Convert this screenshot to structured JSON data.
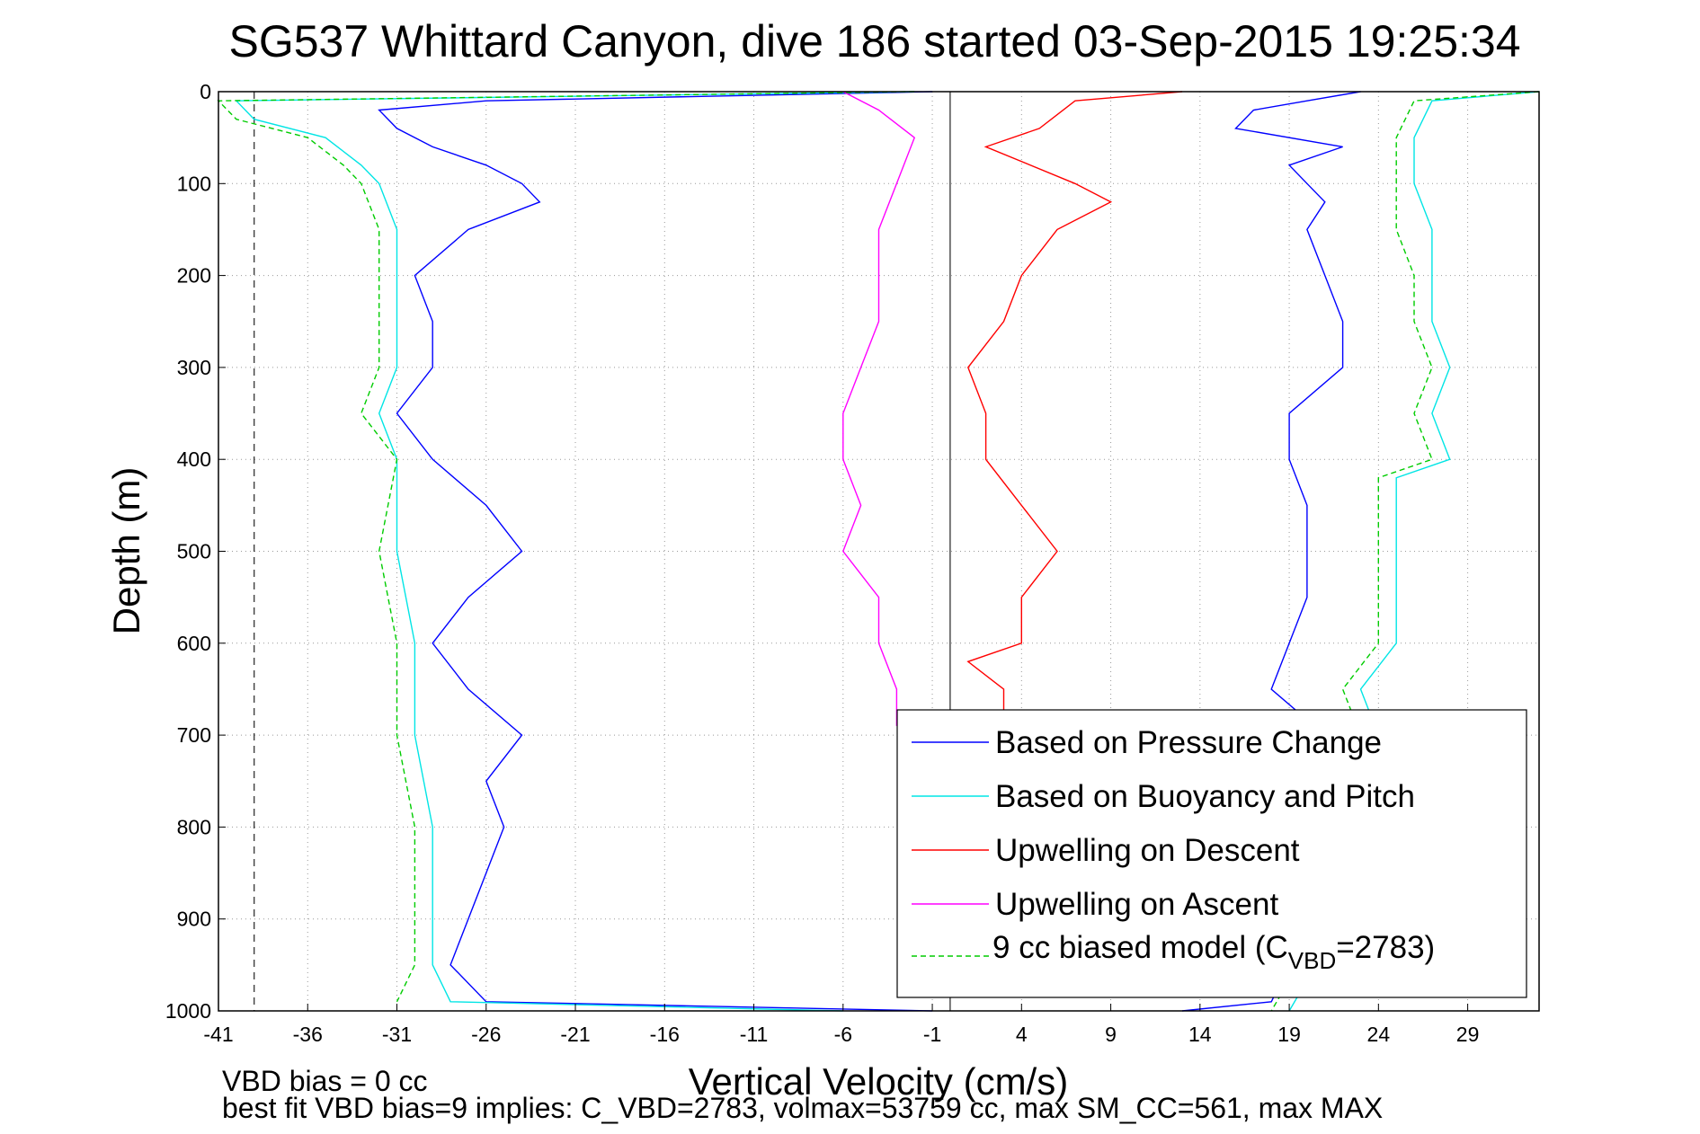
{
  "chart_data": {
    "type": "line",
    "title": "SG537 Whittard Canyon, dive 186 started 03-Sep-2015 19:25:34",
    "xlabel": "Vertical Velocity (cm/s)",
    "ylabel": "Depth (m)",
    "xlim": [
      -41,
      33
    ],
    "ylim": [
      0,
      1000
    ],
    "y_reversed": true,
    "grid": true,
    "x_ticks": [
      "-41",
      "-36",
      "-31",
      "-26",
      "-21",
      "-16",
      "-11",
      "-6",
      "-1",
      "4",
      "9",
      "14",
      "19",
      "24",
      "29"
    ],
    "y_ticks": [
      "0",
      "100",
      "200",
      "300",
      "400",
      "500",
      "600",
      "700",
      "800",
      "900",
      "1000"
    ],
    "legend_placement": "bottom-right",
    "reference_lines": [
      {
        "x": -39,
        "style": "dashed"
      },
      {
        "x": 0,
        "style": "solid"
      }
    ],
    "colors": {
      "pressure": "#0000ff",
      "buoyancy": "#00e5e5",
      "desc": "#ff0000",
      "asc": "#ff00ff",
      "model": "#00cc00"
    },
    "series": [
      {
        "name": "Based on Pressure Change",
        "key": "pressure",
        "style": "solid",
        "depth": [
          0,
          10,
          20,
          40,
          60,
          80,
          100,
          120,
          150,
          200,
          250,
          300,
          350,
          400,
          450,
          500,
          550,
          600,
          650,
          700,
          750,
          800,
          850,
          900,
          950,
          990,
          1000
        ],
        "values": [
          -1,
          -26,
          -32,
          -31,
          -29,
          -26,
          -24,
          -23,
          -27,
          -30,
          -29,
          -29,
          -31,
          -29,
          -26,
          -24,
          -27,
          -29,
          -27,
          -24,
          -26,
          -25,
          -26,
          -27,
          -28,
          -26,
          -1
        ]
      },
      {
        "name": "Based on Pressure Change",
        "key": "pressure",
        "style": "solid",
        "depth": [
          0,
          10,
          20,
          40,
          60,
          80,
          100,
          120,
          150,
          200,
          250,
          300,
          350,
          400,
          450,
          500,
          550,
          600,
          650,
          700,
          750,
          800,
          850,
          900,
          950,
          990,
          1000
        ],
        "values": [
          23,
          20,
          17,
          16,
          22,
          19,
          20,
          21,
          20,
          21,
          22,
          22,
          19,
          19,
          20,
          20,
          20,
          19,
          18,
          21,
          21,
          21,
          21,
          20,
          19,
          18,
          13
        ]
      },
      {
        "name": "Based on Buoyancy and Pitch",
        "key": "buoyancy",
        "style": "solid",
        "depth": [
          0,
          10,
          30,
          50,
          80,
          100,
          150,
          200,
          250,
          300,
          350,
          400,
          500,
          600,
          700,
          800,
          900,
          950,
          990,
          1000
        ],
        "values": [
          -2,
          -40,
          -39,
          -35,
          -33,
          -32,
          -31,
          -31,
          -31,
          -31,
          -32,
          -31,
          -31,
          -30,
          -30,
          -29,
          -29,
          -29,
          -28,
          -6
        ]
      },
      {
        "name": "Based on Buoyancy and Pitch",
        "key": "buoyancy",
        "style": "solid",
        "depth": [
          0,
          10,
          50,
          100,
          150,
          200,
          250,
          300,
          350,
          400,
          420,
          500,
          550,
          600,
          650,
          700,
          800,
          900,
          1000
        ],
        "values": [
          33,
          27,
          26,
          26,
          27,
          27,
          27,
          28,
          27,
          28,
          25,
          25,
          25,
          25,
          23,
          24,
          23,
          22,
          19
        ]
      },
      {
        "name": "Upwelling on Descent",
        "key": "desc",
        "style": "solid",
        "depth": [
          0,
          10,
          40,
          60,
          100,
          120,
          150,
          200,
          250,
          300,
          350,
          400,
          450,
          500,
          550,
          600,
          620,
          650,
          680
        ],
        "values": [
          13,
          7,
          5,
          2,
          7,
          9,
          6,
          4,
          3,
          1,
          2,
          2,
          4,
          6,
          4,
          4,
          1,
          3,
          3
        ]
      },
      {
        "name": "Upwelling on Ascent",
        "key": "asc",
        "style": "solid",
        "depth": [
          0,
          20,
          50,
          100,
          150,
          200,
          250,
          300,
          350,
          400,
          450,
          500,
          550,
          600,
          650,
          690
        ],
        "values": [
          -6,
          -4,
          -2,
          -3,
          -4,
          -4,
          -4,
          -5,
          -6,
          -6,
          -5,
          -6,
          -4,
          -4,
          -3,
          -3
        ]
      },
      {
        "name": "9 cc biased model (C",
        "name_subscript": "VBD",
        "name_suffix": "=2783)",
        "key": "model",
        "style": "dashed",
        "depth": [
          0,
          10,
          30,
          50,
          80,
          100,
          150,
          200,
          250,
          300,
          350,
          400,
          500,
          600,
          700,
          800,
          900,
          950,
          990
        ],
        "values": [
          -2,
          -41,
          -40,
          -36,
          -34,
          -33,
          -32,
          -32,
          -32,
          -32,
          -33,
          -31,
          -32,
          -31,
          -31,
          -30,
          -30,
          -30,
          -31
        ]
      },
      {
        "name": "9 cc biased model (C",
        "key": "model",
        "style": "dashed",
        "depth": [
          0,
          10,
          50,
          100,
          150,
          200,
          250,
          300,
          350,
          400,
          420,
          500,
          550,
          600,
          650,
          700,
          800,
          900,
          1000
        ],
        "values": [
          33,
          26,
          25,
          25,
          25,
          26,
          26,
          27,
          26,
          27,
          24,
          24,
          24,
          24,
          22,
          23,
          22,
          21,
          18
        ]
      }
    ],
    "footnote_lines": [
      "VBD bias = 0 cc",
      "best fit VBD bias=9 implies: C_VBD=2783, volmax=53759 cc, max SM_CC=561, max MAX"
    ]
  }
}
